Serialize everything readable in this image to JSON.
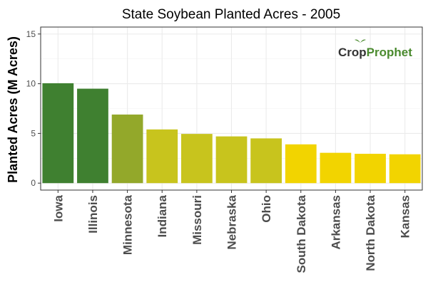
{
  "chart_data": {
    "type": "bar",
    "title": "State Soybean Planted Acres - 2005",
    "xlabel": "",
    "ylabel": "Planted Acres (M Acres)",
    "categories": [
      "Iowa",
      "Illinois",
      "Minnesota",
      "Indiana",
      "Missouri",
      "Nebraska",
      "Ohio",
      "South Dakota",
      "Arkansas",
      "North Dakota",
      "Kansas"
    ],
    "values": [
      10.05,
      9.5,
      6.9,
      5.4,
      4.95,
      4.7,
      4.5,
      3.9,
      3.05,
      2.95,
      2.9
    ],
    "bar_colors": [
      "#3f8030",
      "#3f8030",
      "#93a82a",
      "#c8c41d",
      "#c8c41d",
      "#c8c41d",
      "#c8c41d",
      "#f2d400",
      "#f2d400",
      "#f2d400",
      "#f2d400"
    ],
    "ylim": [
      -0.7,
      15.7
    ],
    "yticks": [
      0,
      5,
      10,
      15
    ],
    "grid": true,
    "legend": "none"
  },
  "watermark": {
    "text_part1": "Crop",
    "text_part2": "Prophet",
    "color_part1": "#333333",
    "color_part2": "#4a8a2e"
  }
}
